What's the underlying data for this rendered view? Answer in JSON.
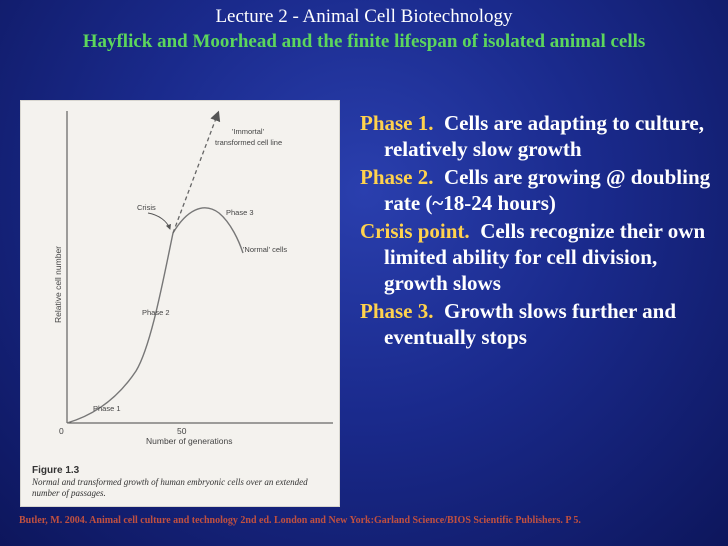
{
  "header": {
    "lecture_title": "Lecture 2  - Animal Cell Biotechnology",
    "subtitle": "Hayflick and Moorhead and the finite lifespan of isolated animal cells"
  },
  "figure": {
    "labels": {
      "immortal": "'Immortal'",
      "immortal_line2": "transformed cell line",
      "crisis": "Crisis",
      "phase3": "Phase 3",
      "normal": "'Normal' cells",
      "phase2": "Phase 2",
      "phase1": "Phase 1",
      "y_axis": "Relative cell number",
      "x_tick_0": "0",
      "x_tick_50": "50",
      "x_axis": "Number of generations"
    },
    "caption_number": "Figure 1.3",
    "caption_text": "Normal and transformed growth of human embryonic cells over an extended number of passages."
  },
  "bullets": [
    {
      "label": "Phase 1.",
      "text": "Cells are adapting to culture, relatively slow growth"
    },
    {
      "label": "Phase 2.",
      "text": "Cells are growing @ doubling rate (~18-24 hours)"
    },
    {
      "label": "Crisis point.",
      "text": "Cells recognize their own limited ability for cell division, growth slows"
    },
    {
      "label": "Phase 3.",
      "text": "Growth slows further and eventually stops"
    }
  ],
  "footer": {
    "citation": "Butler, M.  2004.  Animal cell culture and technology 2nd ed. London and New York:Garland Science/BIOS Scientific Publishers. P 5."
  }
}
